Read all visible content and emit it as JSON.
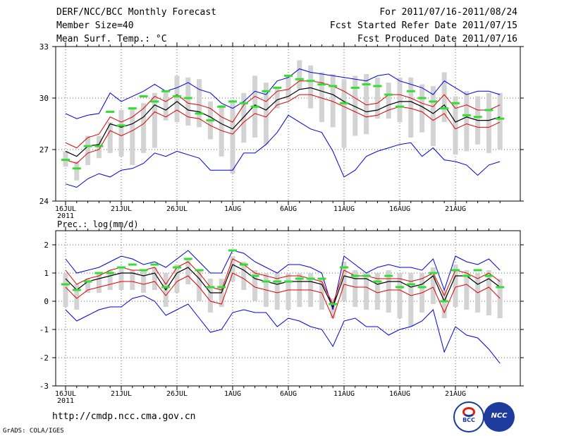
{
  "header": {
    "title": "DERF/NCC/BCC Monthly Forecast",
    "member_size": "Member Size=40",
    "variable": "Mean Surf. Temp.: °C",
    "period": "For 2011/07/16-2011/08/24",
    "refer_date": "Fcst Started Refer Date 2011/07/15",
    "produced_date": "Fcst Produced Date 2011/07/16"
  },
  "footer": {
    "url": "http://cmdp.ncc.cma.gov.cn",
    "credit": "GrADS: COLA/IGES",
    "logo_left": "BCC",
    "logo_right": "NCC"
  },
  "colors": {
    "max": "#0000dd",
    "min": "#0000dd",
    "mean": "#000000",
    "spread": "#dd0000",
    "box": "#d3d3d3",
    "obs": "#33dd33"
  },
  "chart_data": [
    {
      "type": "line",
      "name": "temperature",
      "title": "Mean Surf. Temp.: °C",
      "ylim": [
        24,
        33
      ],
      "yticks": [
        24,
        27,
        30,
        33
      ],
      "x_tick_labels": [
        "16JUL",
        "21JUL",
        "26JUL",
        "1AUG",
        "6AUG",
        "11AUG",
        "16AUG",
        "21AUG"
      ],
      "x_tick_index": [
        0,
        5,
        10,
        15,
        20,
        25,
        30,
        35
      ],
      "year_label": "2011",
      "days": 40,
      "series": [
        {
          "name": "max",
          "values": [
            29.1,
            28.8,
            29.0,
            29.1,
            30.3,
            29.8,
            30.1,
            30.4,
            30.8,
            30.4,
            30.6,
            30.9,
            30.5,
            30.3,
            29.7,
            29.4,
            29.8,
            30.4,
            30.2,
            31.0,
            31.2,
            31.7,
            31.5,
            31.4,
            31.3,
            31.2,
            31.1,
            31.0,
            31.3,
            31.4,
            31.0,
            30.8,
            30.6,
            30.2,
            31.0,
            30.6,
            30.2,
            30.4,
            30.4,
            30.2
          ]
        },
        {
          "name": "upper",
          "values": [
            27.4,
            27.1,
            27.7,
            27.9,
            28.9,
            28.6,
            28.9,
            29.4,
            30.1,
            29.8,
            30.2,
            29.7,
            29.6,
            29.4,
            28.9,
            28.6,
            29.6,
            30.1,
            29.8,
            30.4,
            30.5,
            31.0,
            31.0,
            30.9,
            30.7,
            30.4,
            30.0,
            29.6,
            29.7,
            30.2,
            30.2,
            30.0,
            29.7,
            29.5,
            30.2,
            29.4,
            29.6,
            29.3,
            29.3,
            29.6
          ]
        },
        {
          "name": "mean",
          "values": [
            26.9,
            26.6,
            27.2,
            27.3,
            28.5,
            28.3,
            28.5,
            28.9,
            29.6,
            29.3,
            29.8,
            29.3,
            29.2,
            28.9,
            28.5,
            28.2,
            28.9,
            29.6,
            29.3,
            29.9,
            30.1,
            30.5,
            30.6,
            30.4,
            30.2,
            29.8,
            29.5,
            29.2,
            29.3,
            29.6,
            29.8,
            29.8,
            29.5,
            29.1,
            29.6,
            28.6,
            28.9,
            28.7,
            28.7,
            28.9
          ]
        },
        {
          "name": "lower",
          "values": [
            26.4,
            26.2,
            26.8,
            27.0,
            28.1,
            27.8,
            28.1,
            28.5,
            29.2,
            28.9,
            29.3,
            28.9,
            28.8,
            28.4,
            28.1,
            27.9,
            28.6,
            29.1,
            28.9,
            29.6,
            29.8,
            30.2,
            30.2,
            30.0,
            29.8,
            29.5,
            29.2,
            28.9,
            29.0,
            29.3,
            29.5,
            29.4,
            29.2,
            28.7,
            29.1,
            28.2,
            28.5,
            28.3,
            28.3,
            28.6
          ]
        },
        {
          "name": "min",
          "values": [
            25.0,
            24.8,
            25.3,
            25.6,
            25.4,
            25.8,
            25.9,
            26.2,
            26.8,
            26.6,
            26.9,
            26.7,
            26.5,
            25.8,
            25.8,
            25.8,
            26.8,
            26.8,
            27.3,
            28.0,
            29.0,
            28.6,
            28.2,
            28.0,
            26.9,
            25.4,
            25.8,
            26.6,
            26.9,
            27.1,
            27.3,
            27.4,
            26.6,
            27.1,
            26.4,
            26.3,
            26.1,
            25.5,
            26.1,
            26.3
          ]
        },
        {
          "name": "box_high",
          "values": [
            26.9,
            26.3,
            27.8,
            27.8,
            28.6,
            29.3,
            29.4,
            29.7,
            30.3,
            30.4,
            31.3,
            31.2,
            31.1,
            29.8,
            29.6,
            29.8,
            30.3,
            31.3,
            30.9,
            30.6,
            31.3,
            32.2,
            31.9,
            31.5,
            31.4,
            31.1,
            31.3,
            31.4,
            31.2,
            30.9,
            31.2,
            31.2,
            30.8,
            30.7,
            31.5,
            30.1,
            30.4,
            30.1,
            30.3,
            30.3
          ]
        },
        {
          "name": "box_low",
          "values": [
            26.0,
            25.2,
            26.1,
            26.5,
            26.8,
            26.6,
            26.1,
            26.8,
            27.1,
            28.7,
            28.6,
            28.4,
            28.3,
            27.6,
            26.6,
            25.6,
            27.4,
            27.7,
            27.3,
            29.4,
            29.9,
            30.5,
            29.4,
            28.6,
            28.3,
            27.1,
            27.8,
            27.9,
            28.8,
            28.8,
            28.6,
            27.7,
            28.0,
            27.2,
            28.6,
            26.7,
            26.9,
            27.3,
            26.8,
            27.0
          ]
        },
        {
          "name": "observed",
          "values": [
            26.4,
            25.9,
            27.2,
            27.2,
            29.2,
            28.4,
            29.4,
            30.1,
            29.8,
            30.4,
            30.1,
            30.0,
            29.1,
            28.7,
            29.5,
            29.8,
            29.7,
            29.5,
            30.4,
            30.6,
            31.3,
            31.1,
            31.0,
            30.8,
            30.7,
            29.7,
            30.6,
            30.8,
            30.7,
            30.2,
            29.5,
            30.4,
            30.0,
            29.8,
            29.4,
            29.7,
            29.0,
            28.9,
            29.3,
            28.8
          ]
        }
      ]
    },
    {
      "type": "line",
      "name": "precipitation",
      "title": "Prec.: log(mm/d)",
      "ylim": [
        -3,
        2.5
      ],
      "yticks": [
        -3,
        -2,
        -1,
        0,
        1,
        2
      ],
      "x_tick_labels": [
        "16JUL",
        "21JUL",
        "26JUL",
        "1AUG",
        "6AUG",
        "11AUG",
        "16AUG",
        "21AUG"
      ],
      "x_tick_index": [
        0,
        5,
        10,
        15,
        20,
        25,
        30,
        35
      ],
      "year_label": "2011",
      "days": 40,
      "series": [
        {
          "name": "max",
          "values": [
            1.5,
            1.0,
            1.1,
            1.2,
            1.4,
            1.6,
            1.5,
            1.3,
            1.4,
            1.2,
            1.5,
            1.8,
            1.4,
            1.0,
            1.0,
            1.8,
            1.7,
            1.4,
            1.2,
            1.0,
            1.3,
            1.3,
            1.2,
            1.0,
            -0.3,
            1.6,
            1.3,
            1.0,
            1.2,
            1.3,
            1.2,
            1.2,
            1.1,
            1.5,
            0.4,
            1.6,
            1.4,
            1.3,
            1.5,
            1.1
          ]
        },
        {
          "name": "upper",
          "values": [
            1.1,
            0.6,
            0.8,
            0.9,
            1.1,
            1.2,
            1.1,
            1.1,
            1.2,
            0.6,
            1.2,
            1.4,
            1.0,
            0.5,
            0.4,
            1.5,
            1.3,
            1.0,
            0.9,
            0.8,
            0.9,
            0.9,
            0.8,
            0.7,
            -0.1,
            1.1,
            0.9,
            0.9,
            0.8,
            0.8,
            0.8,
            0.7,
            0.8,
            1.0,
            0.2,
            1.1,
            1.0,
            0.8,
            1.0,
            0.7
          ]
        },
        {
          "name": "mean",
          "values": [
            0.8,
            0.4,
            0.7,
            0.8,
            0.9,
            1.0,
            1.0,
            0.9,
            1.0,
            0.4,
            1.0,
            1.2,
            0.8,
            0.3,
            0.3,
            1.3,
            1.1,
            0.8,
            0.7,
            0.6,
            0.7,
            0.7,
            0.7,
            0.6,
            -0.2,
            0.9,
            0.8,
            0.8,
            0.6,
            0.7,
            0.7,
            0.5,
            0.6,
            0.9,
            0.0,
            0.9,
            0.9,
            0.6,
            0.8,
            0.5
          ]
        },
        {
          "name": "lower",
          "values": [
            0.5,
            0.1,
            0.4,
            0.5,
            0.6,
            0.7,
            0.7,
            0.6,
            0.7,
            0.2,
            0.7,
            0.9,
            0.5,
            0.0,
            -0.1,
            1.0,
            0.8,
            0.5,
            0.4,
            0.3,
            0.4,
            0.4,
            0.4,
            0.3,
            -0.6,
            0.6,
            0.5,
            0.5,
            0.3,
            0.4,
            0.4,
            0.2,
            0.3,
            0.5,
            -0.4,
            0.5,
            0.6,
            0.3,
            0.5,
            0.1
          ]
        },
        {
          "name": "min",
          "values": [
            -0.3,
            -0.7,
            -0.5,
            -0.3,
            -0.2,
            -0.2,
            0.1,
            0.2,
            0.0,
            -0.5,
            -0.3,
            -0.1,
            -0.6,
            -1.1,
            -1.0,
            -0.4,
            -0.3,
            -0.4,
            -0.4,
            -0.9,
            -0.6,
            -0.7,
            -0.9,
            -1.0,
            -1.6,
            -0.7,
            -0.6,
            -0.9,
            -0.9,
            -1.2,
            -1.0,
            -0.9,
            -0.7,
            -0.3,
            -1.8,
            -0.9,
            -1.2,
            -1.3,
            -1.7,
            -2.2
          ]
        },
        {
          "name": "box_high",
          "values": [
            1.0,
            0.6,
            0.8,
            1.0,
            1.1,
            1.2,
            1.1,
            1.1,
            1.2,
            1.0,
            1.3,
            1.5,
            1.1,
            0.8,
            0.8,
            1.6,
            1.4,
            1.1,
            1.0,
            1.0,
            1.0,
            1.0,
            1.0,
            0.8,
            0.1,
            1.4,
            1.1,
            1.0,
            1.0,
            1.1,
            1.0,
            1.0,
            1.0,
            1.2,
            0.4,
            1.3,
            1.1,
            1.0,
            1.1,
            0.8
          ]
        },
        {
          "name": "box_low",
          "values": [
            -0.2,
            -0.3,
            0.3,
            0.3,
            0.4,
            0.4,
            0.4,
            0.3,
            0.4,
            -0.2,
            0.3,
            0.6,
            0.0,
            -0.4,
            -0.2,
            0.7,
            0.4,
            0.0,
            -0.2,
            -0.3,
            -0.3,
            -0.2,
            -0.2,
            -0.3,
            -0.6,
            0.0,
            -0.2,
            -0.3,
            -0.3,
            -0.4,
            -0.6,
            -0.9,
            -0.4,
            -0.1,
            -0.6,
            -0.2,
            -0.3,
            -0.4,
            -0.5,
            -0.6
          ]
        },
        {
          "name": "observed",
          "values": [
            0.6,
            0.4,
            0.7,
            1.0,
            1.0,
            1.2,
            1.3,
            1.1,
            1.3,
            0.5,
            1.2,
            1.5,
            1.1,
            0.5,
            0.5,
            1.8,
            1.3,
            0.9,
            0.7,
            0.7,
            0.7,
            0.8,
            0.8,
            0.8,
            -0.1,
            1.2,
            0.9,
            0.9,
            0.7,
            0.9,
            0.5,
            0.6,
            0.5,
            1.0,
            0.0,
            1.1,
            0.9,
            1.1,
            0.9,
            0.5
          ]
        }
      ]
    }
  ]
}
